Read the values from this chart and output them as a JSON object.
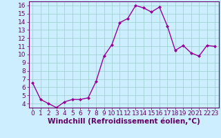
{
  "x": [
    0,
    1,
    2,
    3,
    4,
    5,
    6,
    7,
    8,
    9,
    10,
    11,
    12,
    13,
    14,
    15,
    16,
    17,
    18,
    19,
    20,
    21,
    22,
    23
  ],
  "y": [
    6.5,
    4.5,
    4.0,
    3.5,
    4.2,
    4.5,
    4.5,
    4.7,
    6.7,
    9.8,
    11.2,
    13.9,
    14.4,
    16.0,
    15.7,
    15.2,
    15.8,
    13.5,
    10.5,
    11.1,
    10.2,
    9.8,
    11.1,
    11.0
  ],
  "line_color": "#990099",
  "marker": "D",
  "marker_size": 2.0,
  "linewidth": 1.0,
  "bg_color": "#cceeff",
  "grid_color": "#99cccc",
  "xlabel": "Windchill (Refroidissement éolien,°C)",
  "xlim": [
    -0.5,
    23.5
  ],
  "ylim": [
    3.5,
    16.5
  ],
  "yticks": [
    4,
    5,
    6,
    7,
    8,
    9,
    10,
    11,
    12,
    13,
    14,
    15,
    16
  ],
  "xticks": [
    0,
    1,
    2,
    3,
    4,
    5,
    6,
    7,
    8,
    9,
    10,
    11,
    12,
    13,
    14,
    15,
    16,
    17,
    18,
    19,
    20,
    21,
    22,
    23
  ],
  "tick_color": "#660066",
  "tick_fontsize": 6.5,
  "xlabel_fontsize": 7.5,
  "spine_color": "#660066"
}
